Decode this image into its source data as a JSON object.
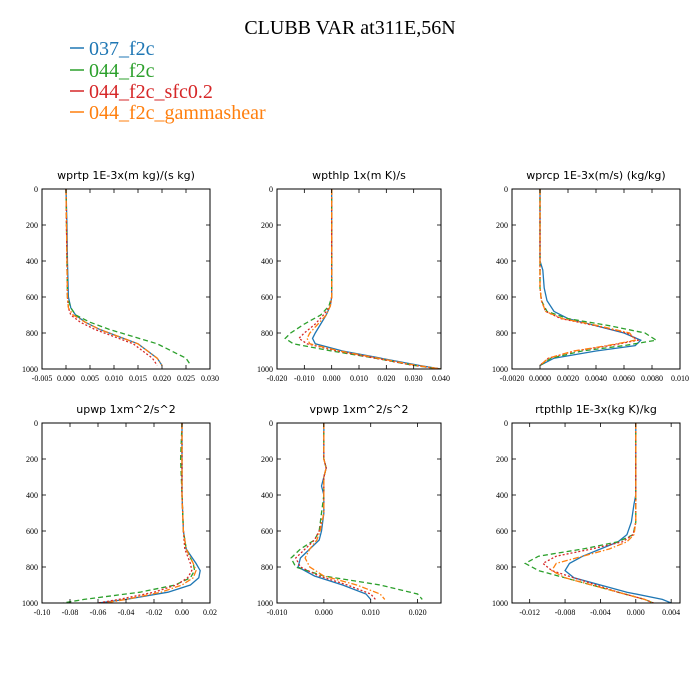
{
  "title": "CLUBB VAR at311E,56N",
  "legend": [
    {
      "label": "037_f2c",
      "color": "#1f77b4",
      "dash": "solid"
    },
    {
      "label": "044_f2c",
      "color": "#2ca02c",
      "dash": "dashed"
    },
    {
      "label": "044_f2c_sfc0.2",
      "color": "#d62728",
      "dash": "dotted"
    },
    {
      "label": "044_f2c_gammashear",
      "color": "#ff7f0e",
      "dash": "dashdot"
    }
  ],
  "chart_data": [
    {
      "type": "line",
      "title": "wprtp   1E-3x(m kg)/(s kg)",
      "xlim": [
        -0.005,
        0.03
      ],
      "xticks": [
        "-0.005",
        "0.000",
        "0.005",
        "0.010",
        "0.015",
        "0.020",
        "0.025",
        "0.030"
      ],
      "xtick_values": [
        -0.005,
        0.0,
        0.005,
        0.01,
        0.015,
        0.02,
        0.025,
        0.03
      ],
      "ylim": [
        0,
        1000
      ],
      "yticks": [
        "0",
        "200",
        "400",
        "600",
        "800",
        "1000"
      ],
      "ytick_values": [
        0,
        200,
        400,
        600,
        800,
        1000
      ],
      "y_inverted": true,
      "series": [
        {
          "y": [
            0,
            200,
            400,
            600,
            660,
            700,
            740,
            780,
            820,
            860,
            900,
            940,
            980
          ],
          "x": [
            0.0,
            0.0002,
            0.0003,
            0.0005,
            0.001,
            0.002,
            0.004,
            0.007,
            0.011,
            0.015,
            0.017,
            0.019,
            0.02
          ]
        },
        {
          "y": [
            0,
            200,
            400,
            600,
            660,
            700,
            740,
            780,
            820,
            860,
            900,
            940,
            980
          ],
          "x": [
            0.0,
            0.0001,
            0.0002,
            0.0003,
            0.001,
            0.002,
            0.005,
            0.009,
            0.014,
            0.019,
            0.022,
            0.025,
            0.026
          ]
        },
        {
          "y": [
            0,
            200,
            400,
            600,
            660,
            700,
            740,
            780,
            820,
            860,
            900,
            940,
            980
          ],
          "x": [
            0.0,
            0.0001,
            0.0002,
            0.0003,
            0.0005,
            0.001,
            0.003,
            0.006,
            0.01,
            0.014,
            0.016,
            0.018,
            0.019
          ]
        },
        {
          "y": [
            0,
            200,
            400,
            600,
            660,
            700,
            740,
            780,
            820,
            860,
            900,
            940,
            980
          ],
          "x": [
            0.0,
            0.0001,
            0.0002,
            0.0003,
            0.0005,
            0.0015,
            0.004,
            0.007,
            0.011,
            0.015,
            0.017,
            0.019,
            0.02
          ]
        }
      ]
    },
    {
      "type": "line",
      "title": "wpthlp   1x(m K)/s",
      "xlim": [
        -0.02,
        0.04
      ],
      "xticks": [
        "-0.020",
        "-0.010",
        "0.000",
        "0.010",
        "0.020",
        "0.030",
        "0.040"
      ],
      "xtick_values": [
        -0.02,
        -0.01,
        0.0,
        0.01,
        0.02,
        0.03,
        0.04
      ],
      "ylim": [
        0,
        1000
      ],
      "yticks": [
        "0",
        "200",
        "400",
        "600",
        "800",
        "1000"
      ],
      "ytick_values": [
        0,
        200,
        400,
        600,
        800,
        1000
      ],
      "y_inverted": true,
      "series": [
        {
          "y": [
            0,
            200,
            400,
            600,
            650,
            700,
            750,
            800,
            830,
            860,
            900,
            940,
            980,
            1000
          ],
          "x": [
            0.0,
            0.0,
            0.0,
            0.0,
            -0.0005,
            -0.002,
            -0.004,
            -0.006,
            -0.007,
            -0.006,
            0.004,
            0.018,
            0.032,
            0.04
          ]
        },
        {
          "y": [
            0,
            200,
            400,
            600,
            650,
            700,
            750,
            800,
            830,
            860,
            900,
            940,
            980,
            1000
          ],
          "x": [
            0.0,
            0.0,
            0.0,
            0.0,
            -0.001,
            -0.004,
            -0.01,
            -0.015,
            -0.017,
            -0.014,
            0.0,
            0.016,
            0.03,
            0.04
          ]
        },
        {
          "y": [
            0,
            200,
            400,
            600,
            650,
            700,
            750,
            800,
            830,
            860,
            900,
            940,
            980,
            1000
          ],
          "x": [
            0.0,
            0.0,
            0.0,
            0.0,
            -0.0005,
            -0.003,
            -0.006,
            -0.01,
            -0.012,
            -0.009,
            0.002,
            0.016,
            0.03,
            0.04
          ]
        },
        {
          "y": [
            0,
            200,
            400,
            600,
            650,
            700,
            750,
            800,
            830,
            860,
            900,
            940,
            980,
            1000
          ],
          "x": [
            0.0,
            0.0,
            0.0,
            0.0,
            -0.0005,
            -0.002,
            -0.005,
            -0.008,
            -0.009,
            -0.008,
            0.003,
            0.017,
            0.031,
            0.04
          ]
        }
      ]
    },
    {
      "type": "line",
      "title": "wprcp   1E-3x(m/s) (kg/kg)",
      "xlim": [
        -0.002,
        0.01
      ],
      "xticks": [
        "-0.0020",
        "0.0000",
        "0.0020",
        "0.0040",
        "0.0060",
        "0.0080",
        "0.010"
      ],
      "xtick_values": [
        -0.002,
        0.0,
        0.002,
        0.004,
        0.006,
        0.008,
        0.01
      ],
      "ylim": [
        0,
        1000
      ],
      "yticks": [
        "0",
        "200",
        "400",
        "600",
        "800",
        "1000"
      ],
      "ytick_values": [
        0,
        200,
        400,
        600,
        800,
        1000
      ],
      "y_inverted": true,
      "series": [
        {
          "y": [
            0,
            200,
            400,
            450,
            550,
            620,
            680,
            720,
            760,
            800,
            840,
            870,
            900,
            940,
            980
          ],
          "x": [
            0.0,
            0.0,
            0.0,
            0.0002,
            0.0003,
            0.0005,
            0.001,
            0.002,
            0.004,
            0.006,
            0.0072,
            0.0068,
            0.004,
            0.001,
            0.0
          ]
        },
        {
          "y": [
            0,
            200,
            400,
            450,
            550,
            620,
            680,
            720,
            760,
            800,
            840,
            870,
            900,
            940,
            980
          ],
          "x": [
            0.0,
            0.0,
            0.0,
            0.0,
            0.0,
            0.0001,
            0.0005,
            0.002,
            0.005,
            0.0075,
            0.0083,
            0.006,
            0.003,
            0.0008,
            0.0
          ]
        },
        {
          "y": [
            0,
            200,
            400,
            450,
            550,
            620,
            680,
            720,
            760,
            800,
            840,
            870,
            900,
            940,
            980
          ],
          "x": [
            0.0,
            0.0,
            0.0,
            0.0,
            0.0,
            0.0001,
            0.0004,
            0.0015,
            0.004,
            0.0062,
            0.007,
            0.005,
            0.0025,
            0.0006,
            0.0
          ]
        },
        {
          "y": [
            0,
            200,
            400,
            450,
            550,
            620,
            680,
            720,
            760,
            800,
            840,
            870,
            900,
            940,
            980
          ],
          "x": [
            0.0,
            0.0,
            0.0,
            0.0,
            0.0,
            0.0001,
            0.0004,
            0.0016,
            0.0042,
            0.0064,
            0.0068,
            0.0048,
            0.0024,
            0.0006,
            0.0
          ]
        }
      ]
    },
    {
      "type": "line",
      "title": "upwp   1xm^2/s^2",
      "xlim": [
        -0.1,
        0.02
      ],
      "xticks": [
        "-0.10",
        "-0.08",
        "-0.06",
        "-0.04",
        "-0.02",
        "0.00",
        "0.02"
      ],
      "xtick_values": [
        -0.1,
        -0.08,
        -0.06,
        -0.04,
        -0.02,
        0.0,
        0.02
      ],
      "ylim": [
        0,
        1000
      ],
      "yticks": [
        "0",
        "200",
        "400",
        "600",
        "800",
        "1000"
      ],
      "ytick_values": [
        0,
        200,
        400,
        600,
        800,
        1000
      ],
      "y_inverted": true,
      "series": [
        {
          "y": [
            0,
            200,
            400,
            600,
            700,
            780,
            820,
            860,
            900,
            940,
            980,
            1000
          ],
          "x": [
            0.0,
            0.0,
            0.0,
            0.001,
            0.003,
            0.01,
            0.013,
            0.012,
            0.006,
            -0.01,
            -0.04,
            -0.06
          ]
        },
        {
          "y": [
            0,
            200,
            400,
            600,
            700,
            780,
            820,
            860,
            900,
            940,
            980,
            1000
          ],
          "x": [
            0.0,
            -0.001,
            0.0,
            0.001,
            0.003,
            0.008,
            0.009,
            0.006,
            -0.005,
            -0.03,
            -0.07,
            -0.085
          ]
        },
        {
          "y": [
            0,
            200,
            400,
            600,
            700,
            780,
            820,
            860,
            900,
            940,
            980,
            1000
          ],
          "x": [
            0.0,
            0.0,
            0.0,
            0.001,
            0.002,
            0.006,
            0.007,
            0.004,
            -0.004,
            -0.02,
            -0.045,
            -0.06
          ]
        },
        {
          "y": [
            0,
            200,
            400,
            600,
            700,
            780,
            820,
            860,
            900,
            940,
            980,
            1000
          ],
          "x": [
            0.0,
            0.0,
            0.0,
            0.001,
            0.003,
            0.008,
            0.01,
            0.008,
            0.0,
            -0.015,
            -0.04,
            -0.055
          ]
        }
      ]
    },
    {
      "type": "line",
      "title": "vpwp   1xm^2/s^2",
      "xlim": [
        -0.01,
        0.025
      ],
      "xticks": [
        "-0.010",
        "0.000",
        "0.010",
        "0.020"
      ],
      "xtick_values": [
        -0.01,
        0.0,
        0.01,
        0.02
      ],
      "ylim": [
        0,
        1000
      ],
      "yticks": [
        "0",
        "200",
        "400",
        "600",
        "800",
        "1000"
      ],
      "ytick_values": [
        0,
        200,
        400,
        600,
        800,
        1000
      ],
      "y_inverted": true,
      "series": [
        {
          "y": [
            0,
            200,
            250,
            300,
            350,
            400,
            500,
            600,
            650,
            700,
            750,
            800,
            850,
            900,
            950,
            980
          ],
          "x": [
            0.0,
            0.0,
            0.0005,
            0.0,
            -0.0005,
            0.0,
            0.0,
            -0.0005,
            -0.001,
            -0.003,
            -0.005,
            -0.0055,
            -0.002,
            0.004,
            0.009,
            0.01
          ]
        },
        {
          "y": [
            0,
            200,
            250,
            300,
            350,
            400,
            500,
            600,
            650,
            700,
            750,
            800,
            850,
            900,
            950,
            980
          ],
          "x": [
            0.0,
            0.0,
            0.0005,
            0.0,
            0.0,
            0.0,
            -0.0005,
            -0.001,
            -0.002,
            -0.005,
            -0.007,
            -0.006,
            0.0,
            0.012,
            0.02,
            0.021
          ]
        },
        {
          "y": [
            0,
            200,
            250,
            300,
            350,
            400,
            500,
            600,
            650,
            700,
            750,
            800,
            850,
            900,
            950,
            980
          ],
          "x": [
            0.0,
            0.0,
            0.0005,
            0.0,
            0.0,
            0.0,
            0.0,
            -0.001,
            -0.002,
            -0.004,
            -0.006,
            -0.005,
            -0.001,
            0.005,
            0.01,
            0.011
          ]
        },
        {
          "y": [
            0,
            200,
            250,
            300,
            350,
            400,
            500,
            600,
            650,
            700,
            750,
            800,
            850,
            900,
            950,
            980
          ],
          "x": [
            0.0,
            0.0,
            0.0005,
            0.0,
            0.0,
            0.0,
            0.0,
            -0.0008,
            -0.0015,
            -0.003,
            -0.004,
            -0.003,
            0.0,
            0.007,
            0.012,
            0.013
          ]
        }
      ]
    },
    {
      "type": "line",
      "title": "rtpthlp   1E-3x(kg K)/kg",
      "xlim": [
        -0.014,
        0.005
      ],
      "xticks": [
        "-0.012",
        "-0.008",
        "-0.004",
        "0.000",
        "0.004"
      ],
      "xtick_values": [
        -0.012,
        -0.008,
        -0.004,
        0.0,
        0.004
      ],
      "ylim": [
        0,
        1000
      ],
      "yticks": [
        "0",
        "200",
        "400",
        "600",
        "800",
        "1000"
      ],
      "ytick_values": [
        0,
        200,
        400,
        600,
        800,
        1000
      ],
      "y_inverted": true,
      "series": [
        {
          "y": [
            0,
            200,
            400,
            450,
            550,
            620,
            660,
            700,
            740,
            780,
            820,
            860,
            900,
            940,
            980,
            1000
          ],
          "x": [
            0.0,
            0.0,
            0.0,
            -0.0002,
            -0.0005,
            -0.001,
            -0.002,
            -0.004,
            -0.006,
            -0.0075,
            -0.008,
            -0.007,
            -0.004,
            -0.001,
            0.003,
            0.004
          ]
        },
        {
          "y": [
            0,
            200,
            400,
            450,
            550,
            620,
            660,
            700,
            740,
            780,
            820,
            860,
            900,
            940,
            980,
            1000
          ],
          "x": [
            0.0,
            0.0,
            0.0,
            0.0,
            0.0,
            -0.0003,
            -0.002,
            -0.006,
            -0.011,
            -0.0125,
            -0.011,
            -0.008,
            -0.005,
            -0.002,
            0.001,
            0.002
          ]
        },
        {
          "y": [
            0,
            200,
            400,
            450,
            550,
            620,
            660,
            700,
            740,
            780,
            820,
            860,
            900,
            940,
            980,
            1000
          ],
          "x": [
            0.0,
            0.0,
            0.0,
            0.0,
            0.0,
            -0.0003,
            -0.0015,
            -0.005,
            -0.009,
            -0.0105,
            -0.0095,
            -0.007,
            -0.0045,
            -0.002,
            0.001,
            0.002
          ]
        },
        {
          "y": [
            0,
            200,
            400,
            450,
            550,
            620,
            660,
            700,
            740,
            780,
            820,
            860,
            900,
            940,
            980,
            1000
          ],
          "x": [
            0.0,
            0.0,
            0.0,
            0.0,
            0.0,
            -0.0002,
            -0.001,
            -0.003,
            -0.006,
            -0.009,
            -0.0095,
            -0.008,
            -0.005,
            -0.002,
            0.001,
            0.002
          ]
        }
      ]
    }
  ]
}
